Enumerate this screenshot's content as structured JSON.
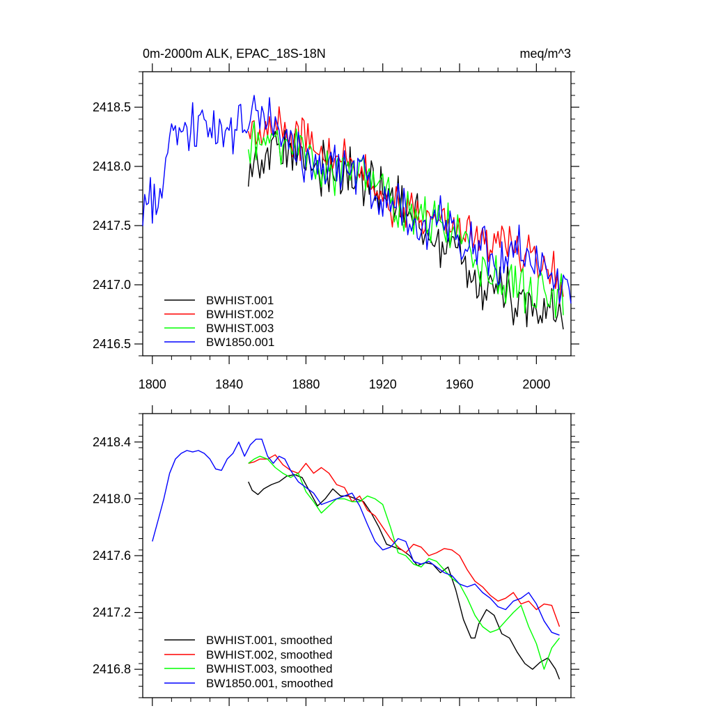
{
  "chart_data": [
    {
      "type": "line",
      "title": "0m-2000m ALK, EPAC_18S-18N",
      "units": "meq/m^3",
      "xlim": [
        1795,
        2018
      ],
      "ylim": [
        2416.4,
        2418.8
      ],
      "xticks": [
        1800,
        1840,
        1880,
        1920,
        1960,
        2000
      ],
      "yticks": [
        2416.5,
        2417.0,
        2417.5,
        2418.0,
        2418.5
      ],
      "xtick_labels": [
        "1800",
        "1840",
        "1880",
        "1920",
        "1960",
        "2000"
      ],
      "ytick_labels": [
        "2416.5",
        "2417.0",
        "2417.5",
        "2418.0",
        "2418.5"
      ],
      "legend": {
        "placement": "bottom-left"
      },
      "series": [
        {
          "name": "BWHIST.001",
          "color": "#000000",
          "start": 1850,
          "end": 2014,
          "noise": 0.18,
          "trend": [
            [
              1850,
              2418.0
            ],
            [
              1860,
              2418.1
            ],
            [
              1880,
              2418.1
            ],
            [
              1900,
              2417.9
            ],
            [
              1920,
              2417.8
            ],
            [
              1940,
              2417.5
            ],
            [
              1960,
              2417.25
            ],
            [
              1970,
              2417.0
            ],
            [
              1980,
              2417.0
            ],
            [
              1990,
              2416.8
            ],
            [
              2005,
              2416.8
            ],
            [
              2014,
              2416.7
            ]
          ]
        },
        {
          "name": "BWHIST.002",
          "color": "#ff0000",
          "start": 1850,
          "end": 2014,
          "noise": 0.15,
          "trend": [
            [
              1850,
              2418.3
            ],
            [
              1870,
              2418.3
            ],
            [
              1890,
              2418.15
            ],
            [
              1910,
              2417.9
            ],
            [
              1930,
              2417.65
            ],
            [
              1950,
              2417.55
            ],
            [
              1960,
              2417.5
            ],
            [
              1980,
              2417.35
            ],
            [
              2000,
              2417.25
            ],
            [
              2014,
              2417.0
            ]
          ]
        },
        {
          "name": "BWHIST.003",
          "color": "#00ff00",
          "start": 1850,
          "end": 2014,
          "noise": 0.17,
          "trend": [
            [
              1850,
              2418.2
            ],
            [
              1870,
              2418.25
            ],
            [
              1890,
              2417.95
            ],
            [
              1910,
              2417.95
            ],
            [
              1920,
              2417.85
            ],
            [
              1930,
              2417.55
            ],
            [
              1950,
              2417.55
            ],
            [
              1960,
              2417.45
            ],
            [
              1970,
              2417.1
            ],
            [
              1980,
              2417.05
            ],
            [
              1990,
              2417.0
            ],
            [
              2000,
              2416.9
            ],
            [
              2014,
              2416.9
            ]
          ]
        },
        {
          "name": "BW1850.001",
          "color": "#0000ff",
          "start": 1795,
          "end": 2018,
          "noise": 0.16,
          "trend": [
            [
              1795,
              2417.6
            ],
            [
              1805,
              2417.8
            ],
            [
              1810,
              2418.2
            ],
            [
              1820,
              2418.35
            ],
            [
              1830,
              2418.3
            ],
            [
              1840,
              2418.25
            ],
            [
              1850,
              2418.35
            ],
            [
              1860,
              2418.45
            ],
            [
              1870,
              2418.2
            ],
            [
              1880,
              2418.0
            ],
            [
              1890,
              2418.0
            ],
            [
              1900,
              2418.0
            ],
            [
              1910,
              2417.9
            ],
            [
              1920,
              2417.65
            ],
            [
              1930,
              2417.65
            ],
            [
              1940,
              2417.5
            ],
            [
              1950,
              2417.5
            ],
            [
              1960,
              2417.4
            ],
            [
              1970,
              2417.35
            ],
            [
              1980,
              2417.2
            ],
            [
              1990,
              2417.3
            ],
            [
              2000,
              2417.15
            ],
            [
              2010,
              2417.05
            ],
            [
              2018,
              2417.0
            ]
          ]
        }
      ]
    },
    {
      "type": "line",
      "title": "",
      "xlim": [
        1795,
        2018
      ],
      "ylim": [
        2416.6,
        2418.6
      ],
      "xticks": [
        1800,
        1840,
        1880,
        1920,
        1960,
        2000
      ],
      "yticks": [
        2416.8,
        2417.2,
        2417.6,
        2418.0,
        2418.4
      ],
      "ytick_labels": [
        "2416.8",
        "2417.2",
        "2417.6",
        "2418.0",
        "2418.4"
      ],
      "legend": {
        "placement": "bottom-left"
      },
      "series": [
        {
          "name": "BWHIST.001, smoothed",
          "color": "#000000",
          "x": [
            1850,
            1852,
            1855,
            1858,
            1862,
            1866,
            1870,
            1874,
            1878,
            1882,
            1886,
            1890,
            1894,
            1898,
            1902,
            1906,
            1910,
            1914,
            1918,
            1922,
            1926,
            1930,
            1934,
            1938,
            1942,
            1946,
            1950,
            1954,
            1958,
            1962,
            1966,
            1968,
            1970,
            1974,
            1978,
            1982,
            1986,
            1990,
            1994,
            1998,
            2002,
            2006,
            2010,
            2012
          ],
          "y": [
            2418.12,
            2418.06,
            2418.03,
            2418.07,
            2418.1,
            2418.12,
            2418.16,
            2418.17,
            2418.15,
            2418.05,
            2417.95,
            2418.0,
            2418.07,
            2418.02,
            2418.02,
            2418.0,
            2417.98,
            2417.9,
            2417.8,
            2417.68,
            2417.66,
            2417.64,
            2417.6,
            2417.53,
            2417.55,
            2417.54,
            2417.48,
            2417.52,
            2417.36,
            2417.15,
            2417.02,
            2417.02,
            2417.12,
            2417.22,
            2417.18,
            2417.05,
            2417.02,
            2416.92,
            2416.84,
            2416.8,
            2416.85,
            2416.88,
            2416.8,
            2416.73
          ]
        },
        {
          "name": "BWHIST.002, smoothed",
          "color": "#ff0000",
          "x": [
            1850,
            1853,
            1856,
            1860,
            1864,
            1868,
            1872,
            1876,
            1880,
            1884,
            1888,
            1892,
            1896,
            1900,
            1904,
            1908,
            1912,
            1916,
            1920,
            1924,
            1928,
            1932,
            1936,
            1940,
            1944,
            1948,
            1952,
            1956,
            1960,
            1964,
            1968,
            1972,
            1976,
            1980,
            1984,
            1988,
            1992,
            1996,
            2000,
            2004,
            2008,
            2012
          ],
          "y": [
            2418.25,
            2418.26,
            2418.28,
            2418.28,
            2418.31,
            2418.24,
            2418.2,
            2418.18,
            2418.25,
            2418.18,
            2418.22,
            2418.18,
            2418.1,
            2418.08,
            2417.98,
            2418.02,
            2417.92,
            2417.88,
            2417.8,
            2417.72,
            2417.66,
            2417.62,
            2417.68,
            2417.66,
            2417.6,
            2417.62,
            2417.65,
            2417.64,
            2417.6,
            2417.5,
            2417.42,
            2417.38,
            2417.32,
            2417.28,
            2417.3,
            2417.34,
            2417.26,
            2417.28,
            2417.22,
            2417.26,
            2417.25,
            2417.1
          ]
        },
        {
          "name": "BWHIST.003, smoothed",
          "color": "#00ff00",
          "x": [
            1850,
            1853,
            1856,
            1860,
            1864,
            1868,
            1872,
            1876,
            1880,
            1884,
            1888,
            1892,
            1896,
            1900,
            1904,
            1908,
            1912,
            1916,
            1920,
            1924,
            1928,
            1932,
            1936,
            1940,
            1944,
            1948,
            1952,
            1956,
            1960,
            1964,
            1968,
            1972,
            1976,
            1980,
            1984,
            1988,
            1992,
            1996,
            2000,
            2004,
            2008,
            2012
          ],
          "y": [
            2418.25,
            2418.28,
            2418.3,
            2418.28,
            2418.22,
            2418.18,
            2418.15,
            2418.18,
            2418.05,
            2417.98,
            2417.9,
            2417.95,
            2418.0,
            2418.0,
            2417.98,
            2417.98,
            2418.02,
            2418.0,
            2417.96,
            2417.8,
            2417.62,
            2417.6,
            2417.54,
            2417.52,
            2417.58,
            2417.56,
            2417.5,
            2417.44,
            2417.4,
            2417.3,
            2417.18,
            2417.1,
            2417.06,
            2417.08,
            2417.14,
            2417.2,
            2417.25,
            2417.1,
            2416.98,
            2416.8,
            2416.95,
            2417.02
          ]
        },
        {
          "name": "BW1850.001, smoothed",
          "color": "#0000ff",
          "x": [
            1800,
            1803,
            1806,
            1809,
            1812,
            1815,
            1818,
            1821,
            1824,
            1827,
            1830,
            1833,
            1836,
            1839,
            1842,
            1845,
            1848,
            1851,
            1854,
            1857,
            1860,
            1863,
            1866,
            1869,
            1872,
            1876,
            1880,
            1884,
            1888,
            1892,
            1896,
            1900,
            1904,
            1908,
            1912,
            1916,
            1920,
            1924,
            1928,
            1932,
            1936,
            1940,
            1944,
            1948,
            1952,
            1956,
            1960,
            1964,
            1968,
            1972,
            1976,
            1980,
            1984,
            1988,
            1992,
            1996,
            2000,
            2004,
            2008,
            2012
          ],
          "y": [
            2417.7,
            2417.85,
            2418.0,
            2418.18,
            2418.28,
            2418.32,
            2418.34,
            2418.33,
            2418.34,
            2418.32,
            2418.28,
            2418.21,
            2418.2,
            2418.28,
            2418.32,
            2418.4,
            2418.3,
            2418.38,
            2418.42,
            2418.42,
            2418.3,
            2418.25,
            2418.3,
            2418.28,
            2418.2,
            2418.12,
            2418.08,
            2418.04,
            2417.96,
            2417.98,
            2418.0,
            2418.02,
            2418.04,
            2417.95,
            2417.82,
            2417.7,
            2417.64,
            2417.66,
            2417.72,
            2417.7,
            2417.56,
            2417.54,
            2417.56,
            2417.52,
            2417.48,
            2417.46,
            2417.4,
            2417.38,
            2417.4,
            2417.34,
            2417.3,
            2417.24,
            2417.22,
            2417.28,
            2417.3,
            2417.34,
            2417.26,
            2417.14,
            2417.06,
            2417.04
          ]
        }
      ]
    }
  ]
}
